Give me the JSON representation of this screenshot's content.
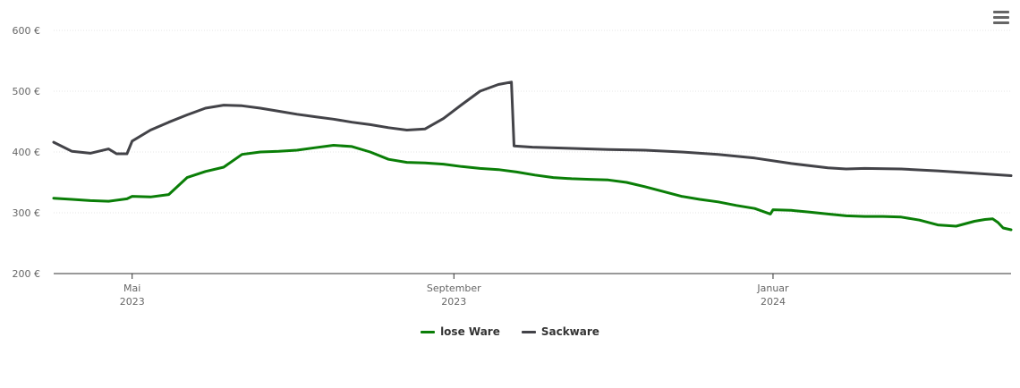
{
  "chart_data": {
    "type": "line",
    "title": "",
    "xlabel": "",
    "ylabel": "",
    "ylim": [
      200,
      600
    ],
    "y_ticks": [
      "200 €",
      "300 €",
      "400 €",
      "500 €",
      "600 €"
    ],
    "x_ticks": [
      {
        "date": "2023-05-01",
        "line1": "Mai",
        "line2": "2023"
      },
      {
        "date": "2023-09-01",
        "line1": "September",
        "line2": "2023"
      },
      {
        "date": "2024-01-01",
        "line1": "Januar",
        "line2": "2024"
      }
    ],
    "xlim": [
      "2023-04-01",
      "2024-04-01"
    ],
    "series": [
      {
        "name": "lose Ware",
        "color": "#0a7e07",
        "points": [
          [
            "2023-04-01",
            324
          ],
          [
            "2023-04-08",
            322
          ],
          [
            "2023-04-15",
            320
          ],
          [
            "2023-04-22",
            319
          ],
          [
            "2023-04-29",
            323
          ],
          [
            "2023-05-01",
            327
          ],
          [
            "2023-05-08",
            326
          ],
          [
            "2023-05-15",
            330
          ],
          [
            "2023-05-22",
            358
          ],
          [
            "2023-05-29",
            368
          ],
          [
            "2023-06-05",
            375
          ],
          [
            "2023-06-12",
            396
          ],
          [
            "2023-06-19",
            400
          ],
          [
            "2023-06-26",
            401
          ],
          [
            "2023-07-03",
            403
          ],
          [
            "2023-07-10",
            407
          ],
          [
            "2023-07-17",
            411
          ],
          [
            "2023-07-24",
            409
          ],
          [
            "2023-07-31",
            400
          ],
          [
            "2023-08-07",
            388
          ],
          [
            "2023-08-14",
            383
          ],
          [
            "2023-08-21",
            382
          ],
          [
            "2023-08-28",
            380
          ],
          [
            "2023-09-04",
            376
          ],
          [
            "2023-09-11",
            373
          ],
          [
            "2023-09-18",
            371
          ],
          [
            "2023-09-25",
            367
          ],
          [
            "2023-10-02",
            362
          ],
          [
            "2023-10-09",
            358
          ],
          [
            "2023-10-16",
            356
          ],
          [
            "2023-10-23",
            355
          ],
          [
            "2023-10-30",
            354
          ],
          [
            "2023-11-06",
            350
          ],
          [
            "2023-11-13",
            343
          ],
          [
            "2023-11-20",
            335
          ],
          [
            "2023-11-27",
            327
          ],
          [
            "2023-12-04",
            322
          ],
          [
            "2023-12-11",
            318
          ],
          [
            "2023-12-18",
            312
          ],
          [
            "2023-12-25",
            307
          ],
          [
            "2023-12-31",
            298
          ],
          [
            "2024-01-01",
            305
          ],
          [
            "2024-01-08",
            304
          ],
          [
            "2024-01-15",
            301
          ],
          [
            "2024-01-22",
            298
          ],
          [
            "2024-01-29",
            295
          ],
          [
            "2024-02-05",
            294
          ],
          [
            "2024-02-12",
            294
          ],
          [
            "2024-02-19",
            293
          ],
          [
            "2024-02-26",
            288
          ],
          [
            "2024-03-04",
            280
          ],
          [
            "2024-03-11",
            278
          ],
          [
            "2024-03-18",
            286
          ],
          [
            "2024-03-22",
            289
          ],
          [
            "2024-03-25",
            290
          ],
          [
            "2024-03-27",
            284
          ],
          [
            "2024-03-29",
            275
          ],
          [
            "2024-04-01",
            272
          ]
        ]
      },
      {
        "name": "Sackware",
        "color": "#434348",
        "points": [
          [
            "2023-04-01",
            416
          ],
          [
            "2023-04-08",
            401
          ],
          [
            "2023-04-15",
            398
          ],
          [
            "2023-04-22",
            405
          ],
          [
            "2023-04-25",
            397
          ],
          [
            "2023-04-29",
            397
          ],
          [
            "2023-05-01",
            418
          ],
          [
            "2023-05-08",
            436
          ],
          [
            "2023-05-15",
            449
          ],
          [
            "2023-05-22",
            461
          ],
          [
            "2023-05-29",
            472
          ],
          [
            "2023-06-05",
            477
          ],
          [
            "2023-06-12",
            476
          ],
          [
            "2023-06-19",
            472
          ],
          [
            "2023-06-26",
            467
          ],
          [
            "2023-07-03",
            462
          ],
          [
            "2023-07-10",
            458
          ],
          [
            "2023-07-17",
            454
          ],
          [
            "2023-07-24",
            449
          ],
          [
            "2023-07-31",
            445
          ],
          [
            "2023-08-07",
            440
          ],
          [
            "2023-08-14",
            436
          ],
          [
            "2023-08-21",
            438
          ],
          [
            "2023-08-28",
            455
          ],
          [
            "2023-09-04",
            478
          ],
          [
            "2023-09-11",
            500
          ],
          [
            "2023-09-18",
            511
          ],
          [
            "2023-09-23",
            515
          ],
          [
            "2023-09-24",
            410
          ],
          [
            "2023-10-01",
            408
          ],
          [
            "2023-10-15",
            406
          ],
          [
            "2023-10-30",
            404
          ],
          [
            "2023-11-13",
            403
          ],
          [
            "2023-11-27",
            400
          ],
          [
            "2023-12-11",
            396
          ],
          [
            "2023-12-25",
            390
          ],
          [
            "2024-01-08",
            381
          ],
          [
            "2024-01-22",
            374
          ],
          [
            "2024-01-29",
            372
          ],
          [
            "2024-02-05",
            373
          ],
          [
            "2024-02-19",
            372
          ],
          [
            "2024-03-04",
            369
          ],
          [
            "2024-03-18",
            365
          ],
          [
            "2024-04-01",
            361
          ]
        ]
      }
    ],
    "legend": [
      {
        "name": "lose Ware",
        "color": "#0a7e07"
      },
      {
        "name": "Sackware",
        "color": "#434348"
      }
    ],
    "legend_position": "bottom-center",
    "grid": true
  },
  "ui": {
    "menu_icon": "hamburger-menu-icon"
  }
}
